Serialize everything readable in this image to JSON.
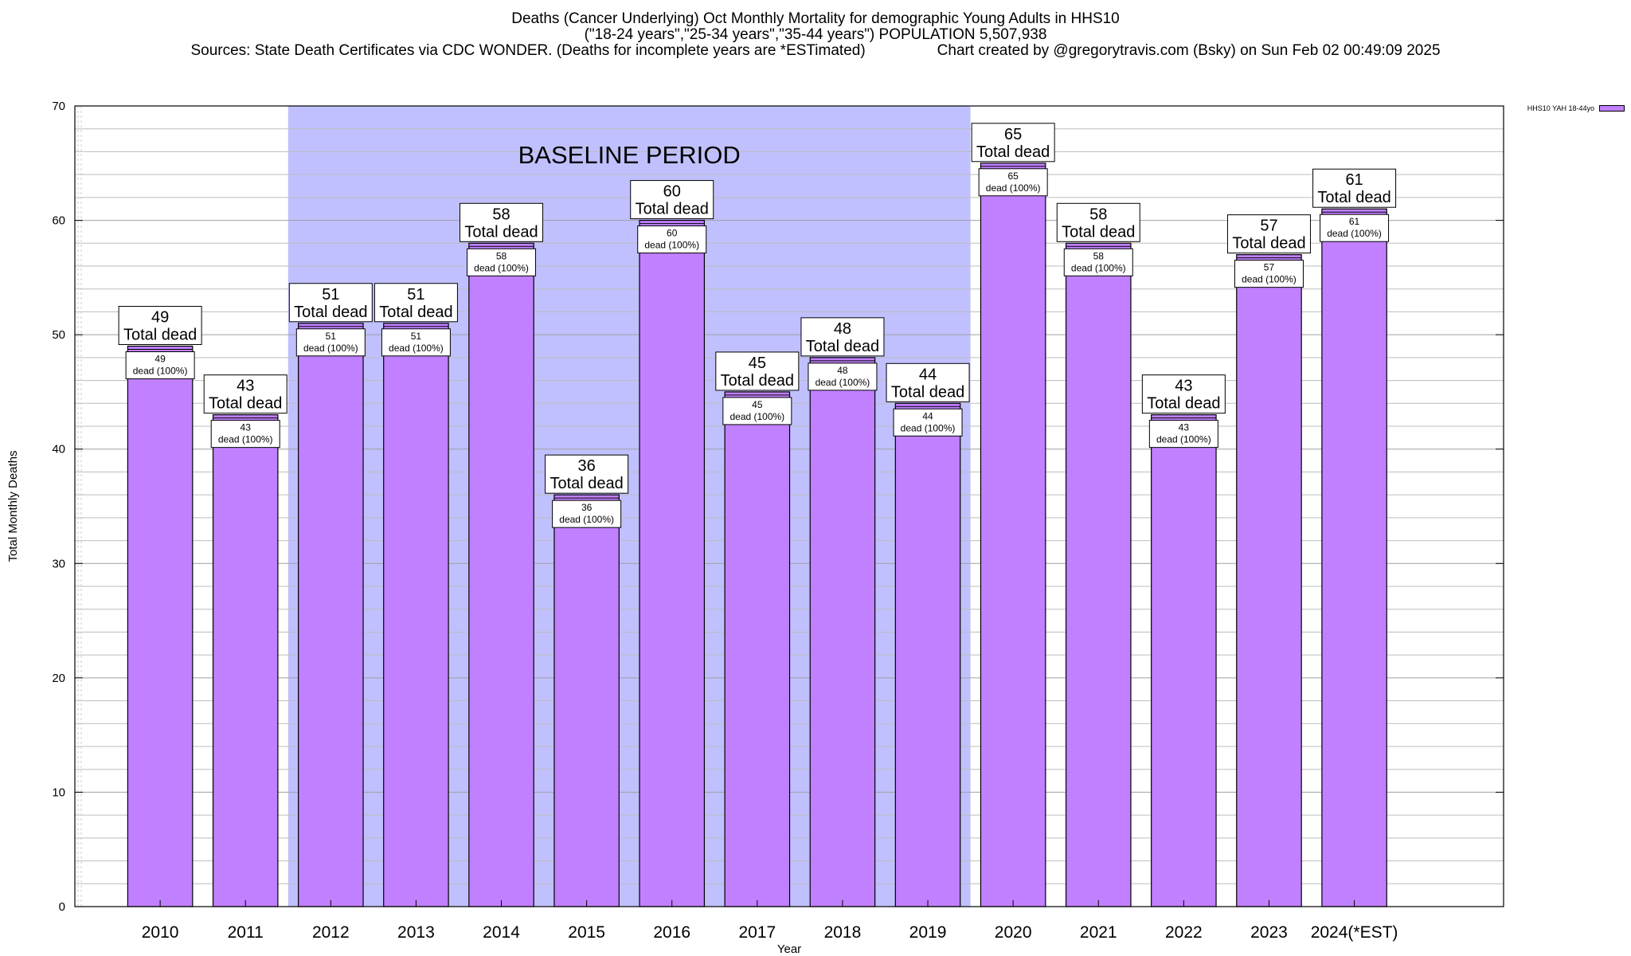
{
  "title": {
    "line1": "Deaths (Cancer Underlying) Oct Monthly Mortality for demographic Young Adults in HHS10",
    "line2": "(\"18-24 years\",\"25-34 years\",\"35-44 years\") POPULATION 5,507,938",
    "line3_left": "Sources: State Death Certificates via CDC WONDER. (Deaths for incomplete years are *ESTimated)",
    "line3_right": "Chart created by @gregorytravis.com (Bsky) on Sun Feb 02 00:49:09 2025"
  },
  "legend": {
    "label": "HHS10 YAH 18-44yo",
    "color": "#c080ff"
  },
  "colors": {
    "bar": "#c080ff",
    "baseline": "#c0c0ff",
    "grid": "#bdbdbd"
  },
  "chart_data": {
    "type": "bar",
    "categories": [
      "2010",
      "2011",
      "2012",
      "2013",
      "2014",
      "2015",
      "2016",
      "2017",
      "2018",
      "2019",
      "2020",
      "2021",
      "2022",
      "2023",
      "2024(*EST)"
    ],
    "series": [
      {
        "name": "HHS10 YAH 18-44yo",
        "values": [
          49,
          43,
          51,
          51,
          58,
          36,
          60,
          45,
          48,
          44,
          65,
          58,
          43,
          57,
          61
        ]
      }
    ],
    "outer_label_suffix": "Total dead",
    "inner_label_suffix": "dead (100%)",
    "xlabel": "Year",
    "ylabel": "Total Monthly Deaths",
    "ylim": [
      0,
      70
    ],
    "yticks": [
      0,
      10,
      20,
      30,
      40,
      50,
      60,
      70
    ],
    "baseline_region": {
      "from": "2012",
      "to": "2019",
      "label": "BASELINE PERIOD"
    },
    "grid": true,
    "legend_position": "top-right"
  }
}
